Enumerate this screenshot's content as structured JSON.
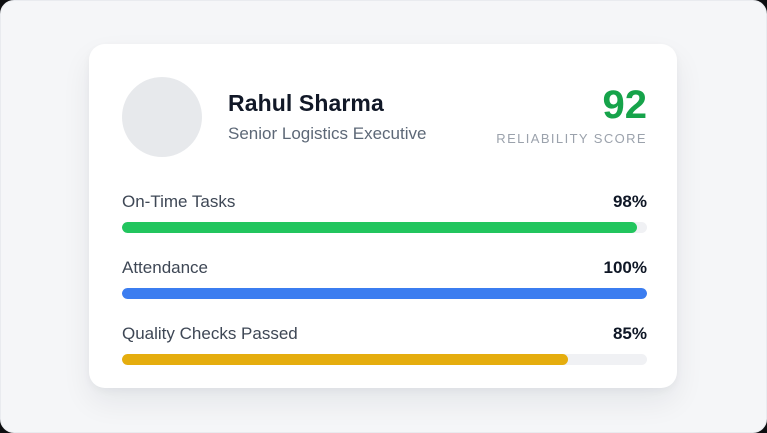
{
  "profile": {
    "name": "Rahul Sharma",
    "role": "Senior Logistics Executive"
  },
  "score": {
    "value": "92",
    "label": "RELIABILITY SCORE",
    "color": "#16a34a"
  },
  "metrics": [
    {
      "label": "On-Time Tasks",
      "value": "98%",
      "percent": 98,
      "color": "#22c55e"
    },
    {
      "label": "Attendance",
      "value": "100%",
      "percent": 100,
      "color": "#3b7df0"
    },
    {
      "label": "Quality Checks Passed",
      "value": "85%",
      "percent": 85,
      "color": "#e5ad0e"
    }
  ],
  "colors": {
    "page_background": "#f5f6f8",
    "card_background": "#ffffff",
    "track": "#f0f1f4",
    "avatar": "#e7e9ec"
  }
}
